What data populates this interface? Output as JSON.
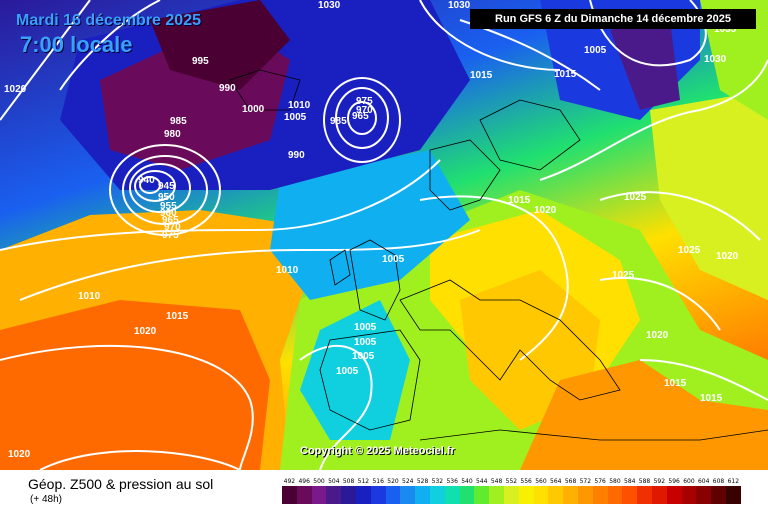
{
  "header": {
    "date": "Mardi 16 décembre 2025",
    "time": "7:00 locale",
    "run": "Run GFS 6 Z du Dimanche 14 décembre 2025"
  },
  "map": {
    "copyright": "Copyright © 2025 Meteociel.fr",
    "pressure_labels": [
      "1030",
      "1020",
      "995",
      "990",
      "1000",
      "1005",
      "1010",
      "985",
      "980",
      "940",
      "945",
      "950",
      "955",
      "960",
      "965",
      "970",
      "975",
      "990",
      "985",
      "975",
      "970",
      "965",
      "1015",
      "1005",
      "1010",
      "1015",
      "1030",
      "1035",
      "1030",
      "1015",
      "1025",
      "1020",
      "1025",
      "1010",
      "1005",
      "1015",
      "1020",
      "1005",
      "1005",
      "1005",
      "1005",
      "1020",
      "1015",
      "1015",
      "1020",
      "1025",
      "1020"
    ]
  },
  "footer": {
    "title": "Géop. Z500 & pression au sol",
    "subtitle": "(+ 48h)"
  },
  "scale": {
    "labels": [
      "492",
      "496",
      "500",
      "504",
      "508",
      "512",
      "516",
      "520",
      "524",
      "528",
      "532",
      "536",
      "540",
      "544",
      "548",
      "552",
      "556",
      "560",
      "564",
      "568",
      "572",
      "576",
      "580",
      "584",
      "588",
      "592",
      "596",
      "600",
      "604",
      "608",
      "612"
    ],
    "colors": [
      "#4b0033",
      "#6a0a5a",
      "#7a1a8a",
      "#4a1a8a",
      "#2a1a9a",
      "#1a20c0",
      "#1a3ae0",
      "#1a60f0",
      "#1a8af0",
      "#10b0f0",
      "#10d0e0",
      "#10e0b0",
      "#20e070",
      "#60ea30",
      "#a0f020",
      "#d8f020",
      "#f8f000",
      "#ffe000",
      "#ffc800",
      "#ffb000",
      "#ff9800",
      "#ff8000",
      "#ff6a00",
      "#ff5000",
      "#f03000",
      "#e01800",
      "#c80000",
      "#a80000",
      "#880000",
      "#600000",
      "#380000"
    ]
  }
}
